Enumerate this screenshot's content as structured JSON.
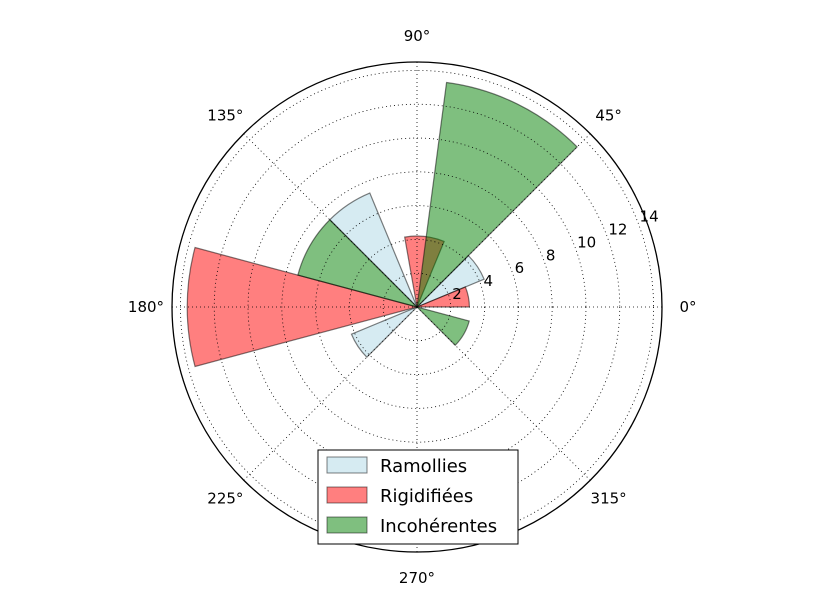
{
  "chart_data": {
    "type": "polar-bar",
    "theta_unit": "degrees",
    "theta_ticks": [
      "0°",
      "45°",
      "90°",
      "135°",
      "180°",
      "225°",
      "270°",
      "315°"
    ],
    "r_ticks": [
      "2",
      "4",
      "6",
      "8",
      "10",
      "12",
      "14"
    ],
    "rlim": [
      0,
      14.5
    ],
    "grid": true,
    "legend_position": "lower-center",
    "series": [
      {
        "name": "Ramollies",
        "color": "#add8e6",
        "bars": [
          {
            "start_deg": 22.5,
            "end_deg": 45,
            "value": 4.3
          },
          {
            "start_deg": 112.5,
            "end_deg": 135,
            "value": 7.3
          },
          {
            "start_deg": 202.5,
            "end_deg": 225,
            "value": 4.2
          }
        ]
      },
      {
        "name": "Rigidifiées",
        "color": "#ff0000",
        "bars": [
          {
            "start_deg": 0,
            "end_deg": 22.5,
            "value": 3.1
          },
          {
            "start_deg": 67.5,
            "end_deg": 100,
            "value": 4.2
          },
          {
            "start_deg": 165,
            "end_deg": 195,
            "value": 13.6
          }
        ]
      },
      {
        "name": "Incohérentes",
        "color": "#008000",
        "bars": [
          {
            "start_deg": 45,
            "end_deg": 82.5,
            "value": 13.4
          },
          {
            "start_deg": 135,
            "end_deg": 165,
            "value": 7.3
          },
          {
            "start_deg": 315,
            "end_deg": 345,
            "value": 3.2
          }
        ]
      }
    ]
  }
}
